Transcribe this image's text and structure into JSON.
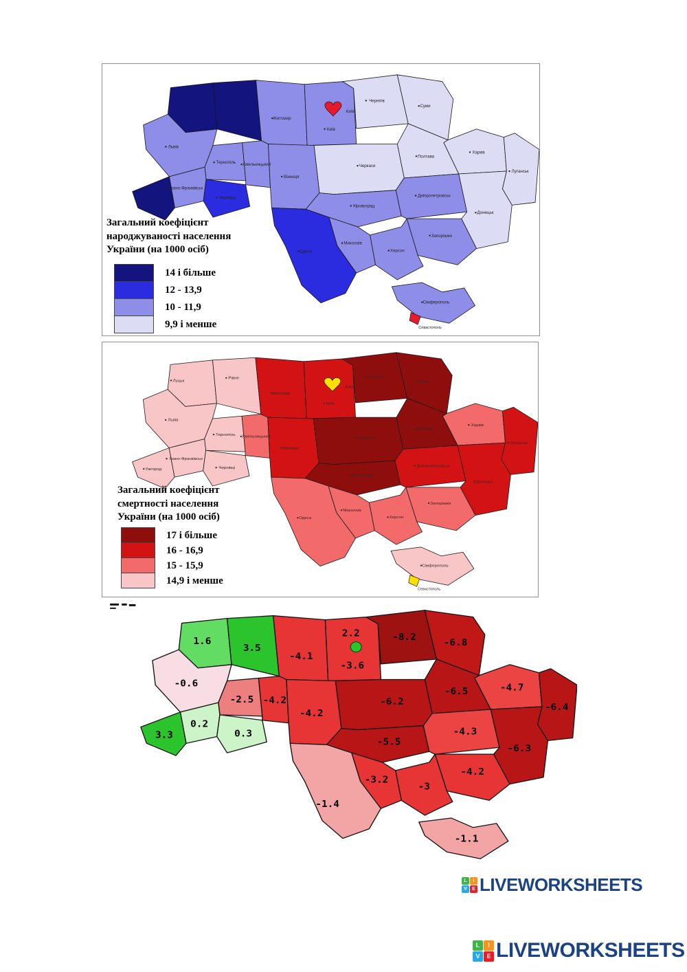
{
  "page": {
    "background": "#ffffff"
  },
  "birth_map": {
    "title": "Загальний коефіцієнт\nнароджуваності населення\nУкраїни (на 1000 осіб)",
    "legend": [
      {
        "label": "14 і більше",
        "color": "#14147f"
      },
      {
        "label": "12 - 13,9",
        "color": "#2b2be0"
      },
      {
        "label": "10 - 11,9",
        "color": "#8e8ee8"
      },
      {
        "label": "9,9 і менше",
        "color": "#dcdcf5"
      }
    ],
    "region_category": {
      "volyn": 0,
      "rivne": 0,
      "zakarpattia": 0,
      "chernivtsi": 1,
      "odesa": 1,
      "lviv": 2,
      "ternopil": 2,
      "ivfrank": 2,
      "khmel": 2,
      "zhytomyr": 2,
      "kyivobl": 2,
      "vinnytsia": 2,
      "kirovohrad": 2,
      "dnipro": 2,
      "zaporizhzhia": 2,
      "mykolaiv": 2,
      "kherson": 2,
      "crimea": 2,
      "chernihiv": 3,
      "sumy": 3,
      "poltava": 3,
      "kharkiv": 3,
      "luhansk": 3,
      "donetsk": 3,
      "cherkasy": 3
    },
    "kyiv_city_color": "#e51b2d",
    "sevastopol_color": "#e51b2d",
    "city_label_color": "#222222",
    "hide_city_labels": [
      "volyn",
      "rivne",
      "zakarpattia"
    ]
  },
  "death_map": {
    "title": "Загальний коефіцієнт\nсмертності населення\nУкраїни (на 1000 осіб)",
    "legend": [
      {
        "label": "17 і більше",
        "color": "#8e0e0e"
      },
      {
        "label": "16 - 16,9",
        "color": "#d31313"
      },
      {
        "label": "15 - 15,9",
        "color": "#f26a6a"
      },
      {
        "label": "14,9 і менше",
        "color": "#f8c6c6"
      }
    ],
    "region_category": {
      "chernihiv": 0,
      "sumy": 0,
      "poltava": 0,
      "cherkasy": 0,
      "kirovohrad": 0,
      "zhytomyr": 1,
      "kyivobl": 1,
      "vinnytsia": 1,
      "dnipro": 1,
      "donetsk": 1,
      "luhansk": 1,
      "khmel": 2,
      "kharkiv": 2,
      "zaporizhzhia": 2,
      "odesa": 2,
      "mykolaiv": 2,
      "kherson": 2,
      "volyn": 3,
      "rivne": 3,
      "lviv": 3,
      "ternopil": 3,
      "ivfrank": 3,
      "zakarpattia": 3,
      "chernivtsi": 3,
      "crimea": 3
    },
    "kyiv_city_color": "#ffdf00",
    "sevastopol_color": "#ffdf00",
    "city_label_color": "#3b2424",
    "hide_city_labels": []
  },
  "natural_map": {
    "values": {
      "volyn": "1.6",
      "rivne": "3.5",
      "lviv": "-0.6",
      "ternopil": "-2.5",
      "khmel": "-4.2",
      "zhytomyr": "-4.1",
      "kyivobl": "-3.6",
      "chernihiv": "-8.2",
      "sumy": "-6.8",
      "poltava": "-6.5",
      "kharkiv": "-4.7",
      "luhansk": "-6.4",
      "donetsk": "-6.3",
      "cherkasy": "-6.2",
      "kirovohrad": "-5.5",
      "dnipro": "-4.3",
      "zaporizhzhia": "-4.2",
      "mykolaiv": "-3.2",
      "kherson": "-3",
      "odesa": "-1.4",
      "crimea": "-1.1",
      "ivfrank": "0.2",
      "chernivtsi": "0.3",
      "zakarpattia": "3.3",
      "vinnytsia": "-4.2"
    },
    "colors": {
      "volyn": "#63dc63",
      "rivne": "#2cc42c",
      "lviv": "#f8dde4",
      "ternopil": "#ee7f7f",
      "khmel": "#e73535",
      "zhytomyr": "#e73535",
      "kyivobl": "#e73535",
      "vinnytsia": "#e73535",
      "chernihiv": "#9e1212",
      "sumy": "#c01717",
      "poltava": "#b81616",
      "kharkiv": "#ec4343",
      "luhansk": "#b81616",
      "donetsk": "#b81616",
      "cherkasy": "#b81616",
      "kirovohrad": "#b81616",
      "dnipro": "#ec4343",
      "zaporizhzhia": "#e73535",
      "mykolaiv": "#e73535",
      "kherson": "#e73535",
      "odesa": "#f3a5a5",
      "crimea": "#f3a5a5",
      "ivfrank": "#cdf3c8",
      "chernivtsi": "#cdf3c8",
      "zakarpattia": "#2cc42c"
    },
    "kyiv_city": {
      "value": "2.2",
      "color": "#2cc42c"
    }
  },
  "cities": {
    "volyn": "Луцьк",
    "rivne": "Рівне",
    "lviv": "Львів",
    "ternopil": "Тернопіль",
    "khmel": "Хмельницький",
    "zhytomyr": "Житомир",
    "kyivobl": "Київ",
    "chernihiv": "Чернігів",
    "sumy": "Суми",
    "kharkiv": "Харків",
    "poltava": "Полтава",
    "cherkasy": "Черкаси",
    "vinnytsia": "Вінниця",
    "kirovohrad": "Кіровоград",
    "dnipro": "Дніпропетровськ",
    "luhansk": "Луганськ",
    "donetsk": "Донецьк",
    "zaporizhzhia": "Запоріжжя",
    "kherson": "Херсон",
    "mykolaiv": "Миколаїв",
    "odesa": "Одеса",
    "ivfrank": "Івано-Франківськ",
    "zakarpattia": "Ужгород",
    "chernivtsi": "Чернівці",
    "crimea": "Сімферополь",
    "kyiv_city": "Київ",
    "sevastopol": "Севастополь"
  },
  "logos": {
    "text": "LIVEWORKSHEETS",
    "text_color": "#1b4384",
    "icon": [
      {
        "ch": "L",
        "color": "#3cb54a"
      },
      {
        "ch": "I",
        "color": "#f7941e"
      },
      {
        "ch": "V",
        "color": "#27aae1"
      },
      {
        "ch": "E",
        "color": "#ed1c24"
      }
    ]
  }
}
